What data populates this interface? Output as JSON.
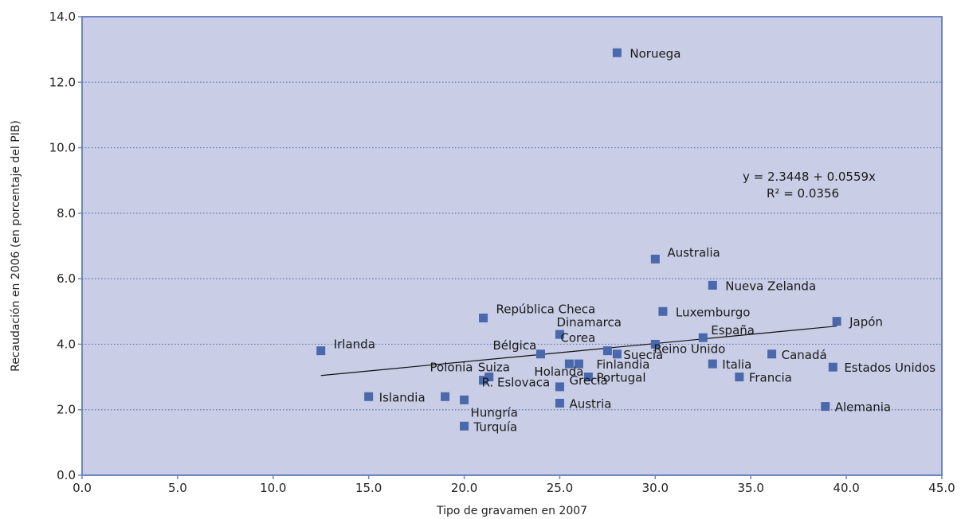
{
  "chart_data": {
    "type": "scatter",
    "xlabel": "Tipo de gravamen en 2007",
    "ylabel": "Recaudación en 2006 (en porcentaje del PIB)",
    "xlim": [
      0,
      45
    ],
    "ylim": [
      0,
      14
    ],
    "x_ticks": [
      "0.0",
      "5.0",
      "10.0",
      "15.0",
      "20.0",
      "25.0",
      "30.0",
      "35.0",
      "40.0",
      "45.0"
    ],
    "y_ticks": [
      "0.0",
      "2.0",
      "4.0",
      "6.0",
      "8.0",
      "10.0",
      "12.0",
      "14.0"
    ],
    "grid": "horizontal-dotted",
    "colors": {
      "plot_bg": "#c9cde5",
      "marker": "#4a68ac",
      "frame": "#6f86c2",
      "grid": "#5d74b8"
    },
    "points": [
      {
        "label": "Noruega",
        "x": 28.0,
        "y": 12.9
      },
      {
        "label": "Australia",
        "x": 30.0,
        "y": 6.6
      },
      {
        "label": "Nueva Zelanda",
        "x": 33.0,
        "y": 5.8
      },
      {
        "label": "República Checa",
        "x": 21.0,
        "y": 4.8
      },
      {
        "label": "Luxemburgo",
        "x": 30.4,
        "y": 5.0
      },
      {
        "label": "Japón",
        "x": 39.5,
        "y": 4.7
      },
      {
        "label": "Dinamarca",
        "x": 25.0,
        "y": 4.3
      },
      {
        "label": "España",
        "x": 32.5,
        "y": 4.2
      },
      {
        "label": "Corea",
        "x": 27.5,
        "y": 3.8
      },
      {
        "label": "Irlanda",
        "x": 12.5,
        "y": 3.8
      },
      {
        "label": "Bélgica",
        "x": 24.0,
        "y": 3.7
      },
      {
        "label": "Suecia",
        "x": 28.0,
        "y": 3.7
      },
      {
        "label": "Reino Unido",
        "x": 30.0,
        "y": 4.0
      },
      {
        "label": "Canadá",
        "x": 36.1,
        "y": 3.7
      },
      {
        "label": "Finlandia",
        "x": 26.0,
        "y": 3.4
      },
      {
        "label": "Holanda",
        "x": 25.5,
        "y": 3.4
      },
      {
        "label": "Italia",
        "x": 33.0,
        "y": 3.4
      },
      {
        "label": "Estados Unidos",
        "x": 39.3,
        "y": 3.3
      },
      {
        "label": "Suiza",
        "x": 21.3,
        "y": 3.0
      },
      {
        "label": "Portugal",
        "x": 26.5,
        "y": 3.0
      },
      {
        "label": "Francia",
        "x": 34.4,
        "y": 3.0
      },
      {
        "label": "Polonia",
        "x": 21.0,
        "y": 2.9
      },
      {
        "label": "Grecia",
        "x": 25.0,
        "y": 2.7
      },
      {
        "label": "R. Eslovaca",
        "x": 19.0,
        "y": 2.4
      },
      {
        "label": "Islandia",
        "x": 15.0,
        "y": 2.4
      },
      {
        "label": "Hungría",
        "x": 20.0,
        "y": 2.3
      },
      {
        "label": "Austria",
        "x": 25.0,
        "y": 2.2
      },
      {
        "label": "Alemania",
        "x": 38.9,
        "y": 2.1
      },
      {
        "label": "Turquía",
        "x": 20.0,
        "y": 1.5
      }
    ],
    "trendline": {
      "x_start": 12.5,
      "x_end": 39.5,
      "intercept": 2.3448,
      "slope": 0.0559
    },
    "annotation": {
      "equation": "y = 2.3448 + 0.0559x",
      "r2": "R² = 0.0356"
    }
  }
}
